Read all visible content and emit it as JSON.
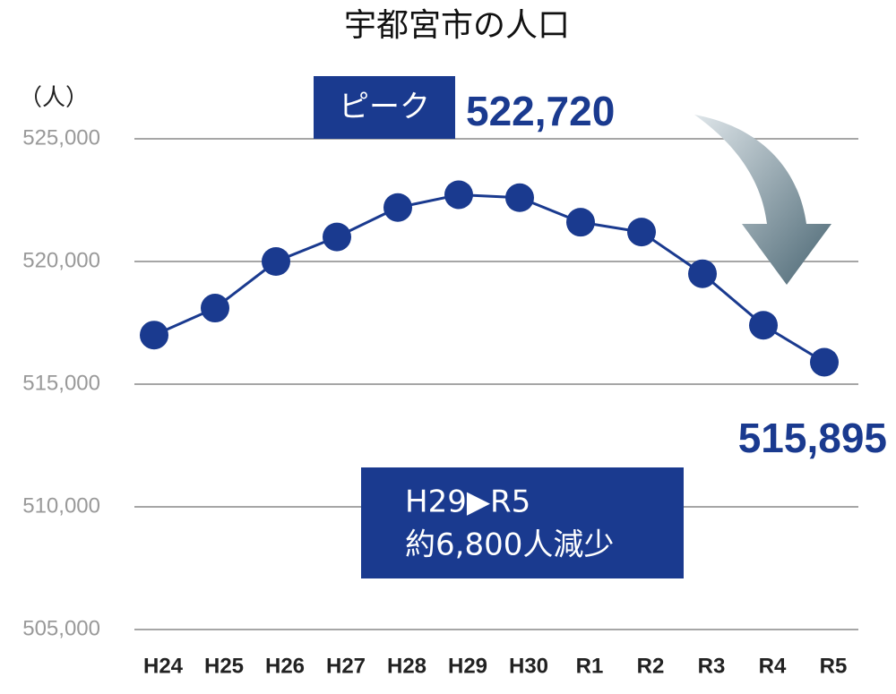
{
  "chart_data": {
    "type": "line",
    "title": "宇都宮市の人口",
    "y_label": "（人）",
    "categories": [
      "H24",
      "H25",
      "H26",
      "H27",
      "H28",
      "H29",
      "H30",
      "R1",
      "R2",
      "R3",
      "R4",
      "R5"
    ],
    "series": [
      {
        "name": "人口",
        "color": "#1a3a8f",
        "values": [
          517000,
          518100,
          520000,
          521000,
          522200,
          522720,
          522600,
          521600,
          521200,
          519500,
          517400,
          515895
        ]
      }
    ],
    "ylim": [
      505000,
      525000
    ],
    "yticks": [
      {
        "value": 505000,
        "label": "505,000"
      },
      {
        "value": 510000,
        "label": "510,000"
      },
      {
        "value": 515000,
        "label": "515,000"
      },
      {
        "value": 520000,
        "label": "520,000"
      },
      {
        "value": 525000,
        "label": "525,000"
      }
    ],
    "grid": true,
    "annotations": {
      "peak_tag": "ピーク",
      "peak_value": "522,720",
      "last_value": "515,895",
      "note_line1": "H29▶R5",
      "note_line2": "約6,800人減少"
    }
  }
}
